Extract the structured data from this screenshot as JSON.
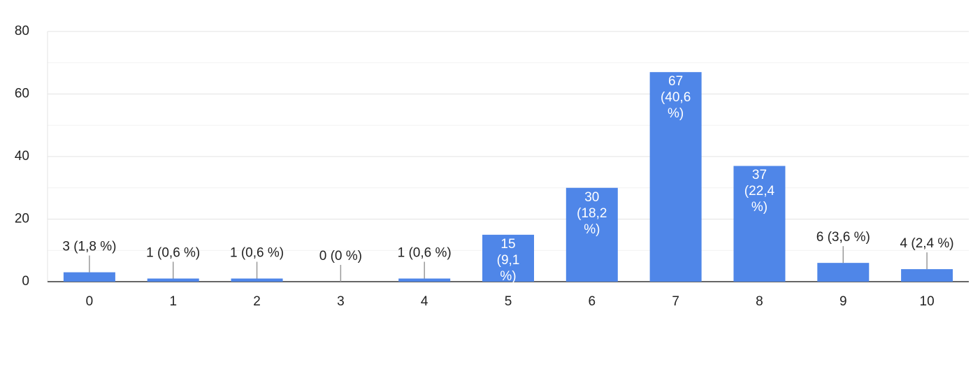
{
  "chart_data": {
    "type": "bar",
    "categories": [
      "0",
      "1",
      "2",
      "3",
      "4",
      "5",
      "6",
      "7",
      "8",
      "9",
      "10"
    ],
    "values": [
      3,
      1,
      1,
      0,
      1,
      15,
      30,
      67,
      37,
      6,
      4
    ],
    "value_labels": [
      "3 (1,8 %)",
      "1 (0,6 %)",
      "1 (0,6 %)",
      "0 (0 %)",
      "1 (0,6 %)",
      "15 (9,1 %)",
      "30 (18,2 %)",
      "67 (40,6 %)",
      "37 (22,4 %)",
      "6 (3,6 %)",
      "4 (2,4 %)"
    ],
    "color": "#4f86e8",
    "ylim": [
      0,
      80
    ],
    "yticks": [
      0,
      20,
      40,
      60,
      80
    ],
    "minor_yticks": [
      10,
      30,
      50,
      70
    ],
    "grid": true
  }
}
